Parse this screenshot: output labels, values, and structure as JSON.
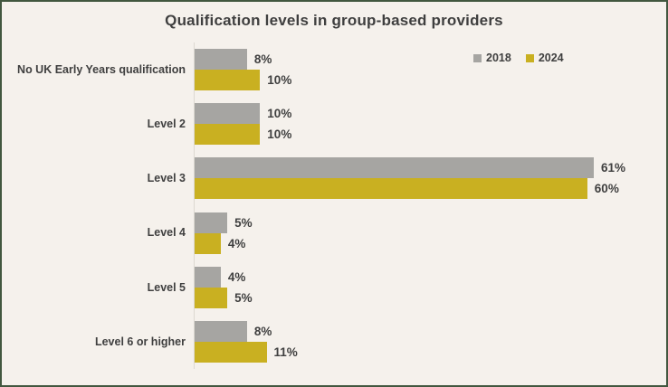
{
  "title": "Qualification levels in group-based providers",
  "colors": {
    "background": "#f5f1ec",
    "frame_border": "#42573f",
    "text": "#3f3f3f",
    "axis_line": "#dcd8d1",
    "series_2018": "#a6a5a2",
    "series_2024": "#c9b021"
  },
  "legend": {
    "position": "top-right",
    "items": [
      {
        "label": "2018",
        "color": "#a6a5a2"
      },
      {
        "label": "2024",
        "color": "#c9b021"
      }
    ]
  },
  "chart_data": {
    "type": "bar",
    "orientation": "horizontal",
    "title": "Qualification levels in group-based providers",
    "unit": "%",
    "categories": [
      "No UK Early Years qualification",
      "Level 2",
      "Level 3",
      "Level 4",
      "Level 5",
      "Level 6 or higher"
    ],
    "series": [
      {
        "name": "2018",
        "color": "#a6a5a2",
        "values": [
          8,
          10,
          61,
          5,
          4,
          8
        ]
      },
      {
        "name": "2024",
        "color": "#c9b021",
        "values": [
          10,
          10,
          60,
          4,
          5,
          11
        ]
      }
    ],
    "value_labels": {
      "2018": [
        "8%",
        "10%",
        "61%",
        "5%",
        "4%",
        "8%"
      ],
      "2024": [
        "10%",
        "10%",
        "60%",
        "4%",
        "5%",
        "11%"
      ]
    },
    "xlabel": "",
    "ylabel": "",
    "xlim": [
      0,
      65
    ],
    "grid": false,
    "legend_position": "top-right"
  }
}
